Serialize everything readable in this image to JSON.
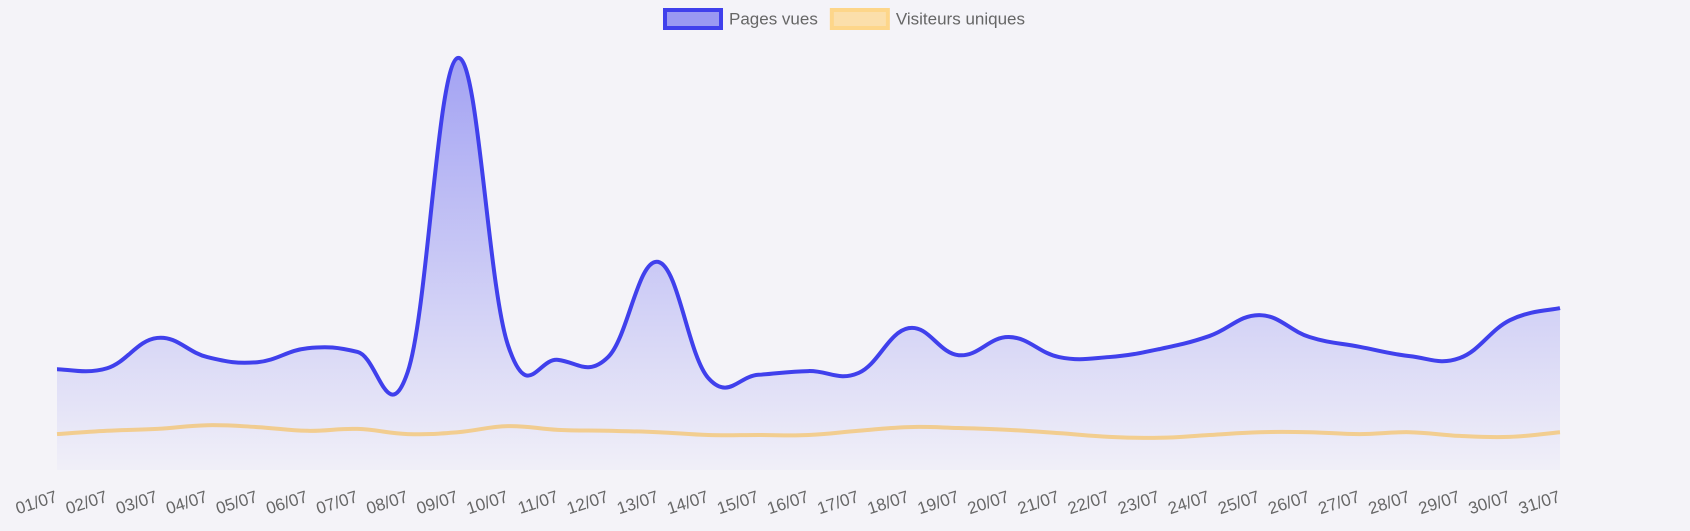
{
  "chart_data": {
    "type": "line",
    "categories": [
      "01/07",
      "02/07",
      "03/07",
      "04/07",
      "05/07",
      "06/07",
      "07/07",
      "08/07",
      "09/07",
      "10/07",
      "11/07",
      "12/07",
      "13/07",
      "14/07",
      "15/07",
      "16/07",
      "17/07",
      "18/07",
      "19/07",
      "20/07",
      "21/07",
      "22/07",
      "23/07",
      "24/07",
      "25/07",
      "26/07",
      "27/07",
      "28/07",
      "29/07",
      "30/07",
      "31/07"
    ],
    "series": [
      {
        "name": "Pages vues",
        "color": "#4040ec",
        "values": [
          216,
          218,
          283,
          242,
          231,
          261,
          253,
          210,
          883,
          268,
          236,
          242,
          446,
          197,
          204,
          212,
          208,
          304,
          246,
          285,
          242,
          242,
          259,
          287,
          332,
          285,
          264,
          244,
          240,
          321,
          347
        ]
      },
      {
        "name": "Visiteurs uniques",
        "color": "#fdd68a",
        "values": [
          77,
          84,
          88,
          96,
          92,
          84,
          88,
          77,
          81,
          94,
          86,
          84,
          81,
          75,
          75,
          75,
          84,
          92,
          90,
          86,
          79,
          71,
          69,
          75,
          81,
          81,
          77,
          81,
          73,
          71,
          81
        ]
      }
    ],
    "ylim": [
      0,
      900
    ],
    "legend": "top"
  }
}
